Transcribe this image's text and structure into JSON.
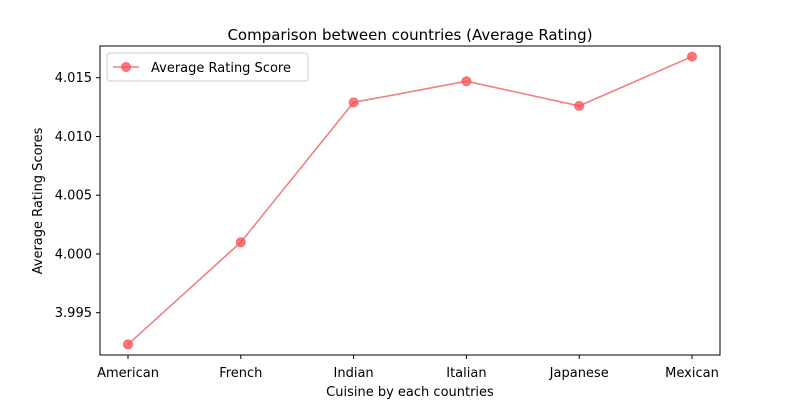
{
  "chart_data": {
    "type": "line",
    "title": "Comparison between countries (Average Rating)",
    "xlabel": "Cuisine by each countries",
    "ylabel": "Average Rating Scores",
    "categories": [
      "American",
      "French",
      "Indian",
      "Italian",
      "Japanese",
      "Mexican"
    ],
    "series": [
      {
        "name": "Average Rating Score",
        "values": [
          3.9923,
          4.001,
          4.0129,
          4.0147,
          4.0126,
          4.0168
        ],
        "color": "#f08080"
      }
    ],
    "ylim": [
      3.9914,
      4.0177
    ],
    "yticks": [
      "3.995",
      "4.000",
      "4.005",
      "4.010",
      "4.015"
    ],
    "ytick_values": [
      3.995,
      4.0,
      4.005,
      4.01,
      4.015
    ],
    "grid": false,
    "legend_position": "top-left",
    "marker_color": "#ff4c4c"
  }
}
